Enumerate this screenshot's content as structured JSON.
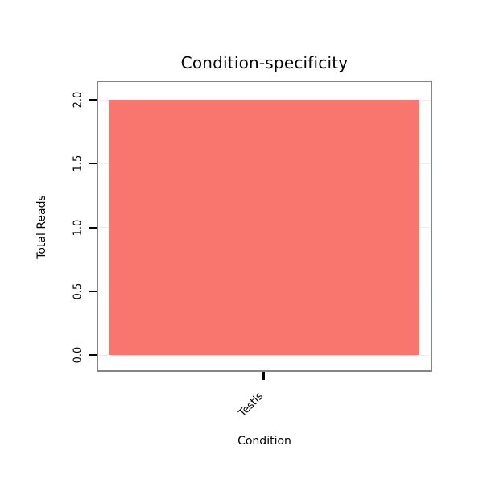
{
  "chart_data": {
    "type": "bar",
    "title": "Condition-specificity",
    "xlabel": "Condition",
    "ylabel": "Total Reads",
    "categories": [
      "Testis"
    ],
    "values": [
      2.0
    ],
    "ylim": [
      0.0,
      2.0
    ],
    "yticks": [
      0.0,
      0.5,
      1.0,
      1.5,
      2.0
    ],
    "ytick_labels": [
      "0.0",
      "0.5",
      "1.0",
      "1.5",
      "2.0"
    ],
    "bar_color": "#F8766D",
    "grid": true,
    "legend": false,
    "frame_color": "#848484"
  }
}
